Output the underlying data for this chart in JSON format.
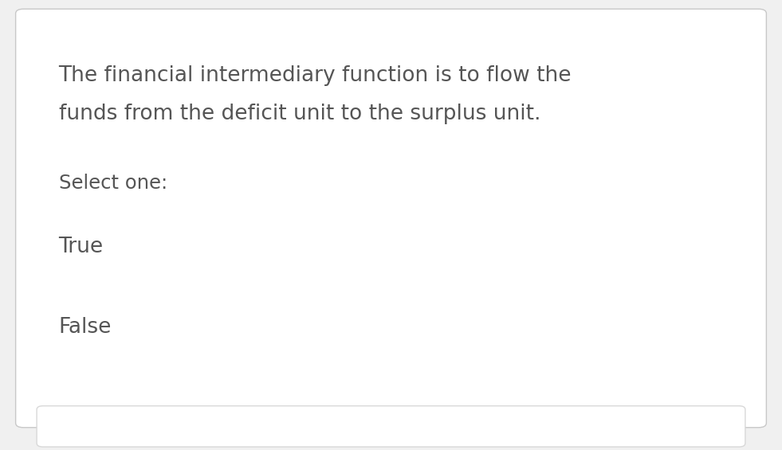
{
  "background_color": "#f0f0f0",
  "card_color": "#ffffff",
  "card_border_color": "#c8c8c8",
  "text_color": "#555555",
  "question_line1": "The financial intermediary function is to flow the",
  "question_line2": "funds from the deficit unit to the surplus unit.",
  "select_label": "Select one:",
  "options": [
    "True",
    "False"
  ],
  "question_fontsize": 19,
  "select_fontsize": 17.5,
  "option_fontsize": 19,
  "radio_color": "#333333",
  "radio_linewidth": 1.8,
  "bottom_bar_color": "#d8d8d8"
}
